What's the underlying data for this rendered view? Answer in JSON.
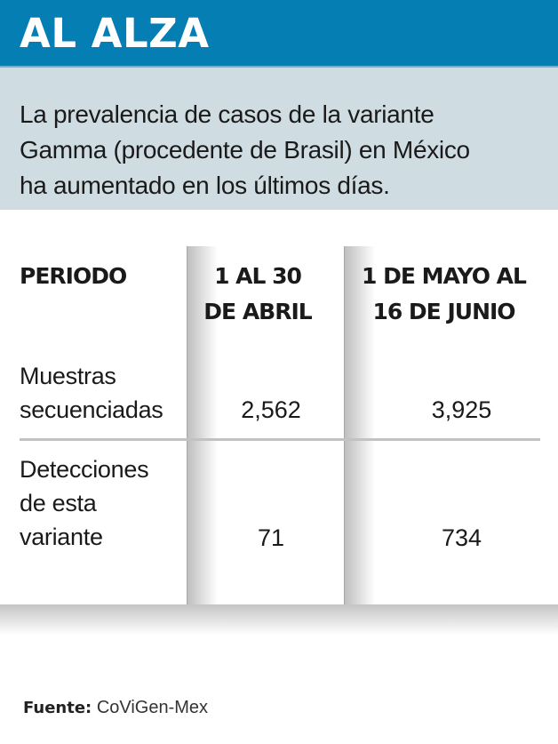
{
  "header": {
    "title": "AL ALZA",
    "background_color": "#047eb3"
  },
  "intro": {
    "text_lines": [
      "La prevalencia de casos de la variante",
      "Gamma (procedente de Brasil) en México",
      "ha aumentado en los últimos días."
    ],
    "background_color": "#cfdde3"
  },
  "table": {
    "columns": [
      {
        "label": "PERIODO",
        "lines": [
          "PERIODO"
        ]
      },
      {
        "label": "1 AL 30 DE ABRIL",
        "lines": [
          "1 AL 30",
          "DE ABRIL"
        ]
      },
      {
        "label": "1 DE MAYO AL 16 DE JUNIO",
        "lines": [
          "1 DE MAYO AL",
          "16 DE JUNIO"
        ]
      }
    ],
    "rows": [
      {
        "label_lines": [
          "Muestras",
          "secuenciadas"
        ],
        "values": [
          "2,562",
          "3,925"
        ]
      },
      {
        "label_lines": [
          "Detecciones",
          "de esta",
          "variante"
        ],
        "values": [
          "71",
          "734"
        ]
      }
    ]
  },
  "source": {
    "label": "Fuente:",
    "value": "CoViGen-Mex"
  }
}
